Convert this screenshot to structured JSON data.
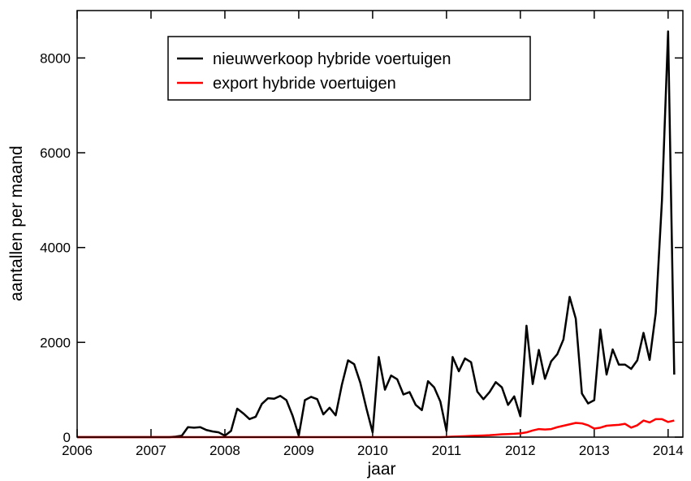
{
  "chart_data": {
    "type": "line",
    "x_label": "jaar",
    "y_label": "aantallen per maand",
    "x": [
      2006,
      2006.083,
      2006.167,
      2006.25,
      2006.333,
      2006.417,
      2006.5,
      2006.583,
      2006.667,
      2006.75,
      2006.833,
      2006.917,
      2007,
      2007.083,
      2007.167,
      2007.25,
      2007.333,
      2007.417,
      2007.5,
      2007.583,
      2007.667,
      2007.75,
      2007.833,
      2007.917,
      2008,
      2008.083,
      2008.167,
      2008.25,
      2008.333,
      2008.417,
      2008.5,
      2008.583,
      2008.667,
      2008.75,
      2008.833,
      2008.917,
      2009,
      2009.083,
      2009.167,
      2009.25,
      2009.333,
      2009.417,
      2009.5,
      2009.583,
      2009.667,
      2009.75,
      2009.833,
      2009.917,
      2010,
      2010.083,
      2010.167,
      2010.25,
      2010.333,
      2010.417,
      2010.5,
      2010.583,
      2010.667,
      2010.75,
      2010.833,
      2010.917,
      2011,
      2011.083,
      2011.167,
      2011.25,
      2011.333,
      2011.417,
      2011.5,
      2011.583,
      2011.667,
      2011.75,
      2011.833,
      2011.917,
      2012,
      2012.083,
      2012.167,
      2012.25,
      2012.333,
      2012.417,
      2012.5,
      2012.583,
      2012.667,
      2012.75,
      2012.833,
      2012.917,
      2013,
      2013.083,
      2013.167,
      2013.25,
      2013.333,
      2013.417,
      2013.5,
      2013.583,
      2013.667,
      2013.75,
      2013.833,
      2013.917,
      2014,
      2014.083
    ],
    "series": [
      {
        "name": "nieuwverkoop hybride voertuigen",
        "color": "#000000",
        "values": [
          0,
          0,
          0,
          0,
          0,
          0,
          0,
          0,
          0,
          0,
          0,
          0,
          0,
          0,
          0,
          0,
          10,
          30,
          210,
          200,
          210,
          150,
          120,
          100,
          30,
          130,
          600,
          500,
          380,
          430,
          700,
          820,
          810,
          870,
          780,
          450,
          30,
          780,
          850,
          800,
          480,
          620,
          460,
          1100,
          1620,
          1540,
          1150,
          600,
          100,
          1690,
          1000,
          1300,
          1220,
          900,
          950,
          680,
          570,
          1180,
          1050,
          750,
          130,
          1690,
          1390,
          1660,
          1580,
          960,
          800,
          950,
          1160,
          1050,
          680,
          860,
          440,
          2350,
          1120,
          1840,
          1230,
          1600,
          1750,
          2060,
          2960,
          2500,
          920,
          710,
          780,
          2270,
          1320,
          1850,
          1530,
          1530,
          1440,
          1620,
          2200,
          1630,
          2620,
          5000,
          8560,
          1320
        ]
      },
      {
        "name": "export hybride voertuigen",
        "color": "#ff0000",
        "values": [
          0,
          0,
          0,
          0,
          0,
          0,
          0,
          0,
          0,
          0,
          0,
          0,
          0,
          0,
          0,
          0,
          0,
          0,
          0,
          0,
          0,
          0,
          0,
          0,
          0,
          0,
          0,
          0,
          0,
          0,
          0,
          0,
          0,
          0,
          0,
          0,
          0,
          0,
          0,
          0,
          0,
          0,
          0,
          0,
          0,
          0,
          0,
          0,
          0,
          0,
          0,
          0,
          0,
          0,
          0,
          0,
          0,
          0,
          0,
          0,
          5,
          10,
          15,
          20,
          25,
          30,
          35,
          40,
          50,
          60,
          65,
          70,
          80,
          100,
          140,
          170,
          160,
          170,
          210,
          240,
          270,
          300,
          290,
          250,
          180,
          200,
          240,
          250,
          260,
          280,
          200,
          250,
          350,
          310,
          380,
          380,
          320,
          350
        ]
      }
    ],
    "xlim": [
      2006,
      2014.2
    ],
    "xticks": [
      2006,
      2007,
      2008,
      2009,
      2010,
      2011,
      2012,
      2013,
      2014
    ],
    "ylim": [
      0,
      9000
    ],
    "yticks": [
      0,
      2000,
      4000,
      6000,
      8000
    ],
    "legend": "upper-left"
  }
}
